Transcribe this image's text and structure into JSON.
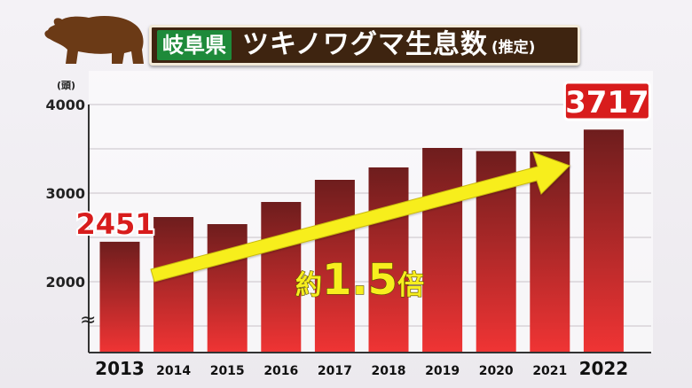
{
  "title": {
    "region": "岐阜県",
    "main": "ツキノワグマ生息数",
    "sub": "(推定)"
  },
  "annotation": "約1.5倍",
  "chart_data": {
    "type": "bar",
    "ylabel": "(頭)",
    "categories": [
      "2013",
      "2014",
      "2015",
      "2016",
      "2017",
      "2018",
      "2019",
      "2020",
      "2021",
      "2022"
    ],
    "values": [
      2451,
      2730,
      2650,
      2900,
      3150,
      3290,
      3510,
      3475,
      3470,
      3717
    ],
    "yticks": [
      "2000",
      "3000",
      "4000"
    ],
    "ylim": [
      1200,
      4000
    ],
    "axis_break": "≈",
    "data_labels": [
      {
        "category": "2013",
        "text": "2451"
      },
      {
        "category": "2022",
        "text": "3717"
      }
    ],
    "grid": true,
    "colors": {
      "bar_top": "#6e1d1d",
      "bar_bottom": "#f03434",
      "label": "#d81c1c",
      "arrow": "#f7ee1e"
    }
  }
}
